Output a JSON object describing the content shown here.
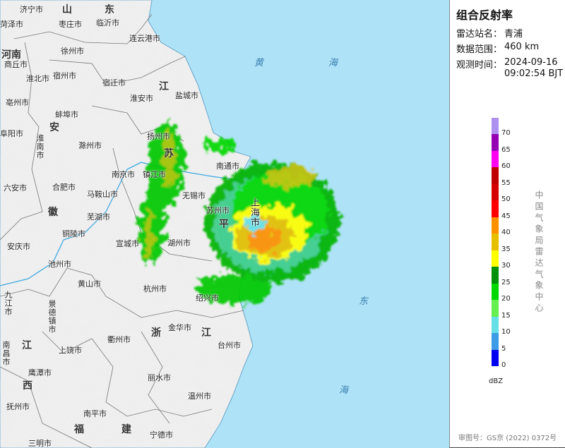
{
  "panel": {
    "title": "组合反射率",
    "station_label": "雷达站名：",
    "station_value": "青浦",
    "range_label": "数据范围：",
    "range_value": "460 km",
    "time_label": "观测时间：",
    "time_date": "2024-09-16",
    "time_clock": "09:02:54 BJT",
    "credit": "中国气象局雷达气象中心",
    "footer": "审图号：GS京 (2022) 0372号"
  },
  "legend": {
    "unit": "dBZ",
    "ticks": [
      "70",
      "65",
      "60",
      "55",
      "50",
      "45",
      "40",
      "35",
      "30",
      "25",
      "20",
      "15",
      "10",
      "5",
      "0"
    ],
    "colors_top_to_bottom": [
      "#ad90f0",
      "#9600b4",
      "#ff00f0",
      "#c00000",
      "#d60000",
      "#ff0000",
      "#ff9000",
      "#e6c000",
      "#ffff00",
      "#00900a",
      "#00d800",
      "#66f050",
      "#66e0e6",
      "#3c9ce6",
      "#0000f0"
    ]
  },
  "map": {
    "colors": {
      "sea": "#aee2f6",
      "land": "#efefef",
      "border": "#777777",
      "river": "#3fa9e0"
    },
    "provinces": [
      "山",
      "东",
      "河南",
      "江",
      "安",
      "苏",
      "徽",
      "浙",
      "江",
      "江",
      "西",
      "福",
      "建",
      "平"
    ],
    "cities": [
      "济宁市",
      "菏泽市",
      "枣庄市",
      "临沂市",
      "连云港市",
      "徐州市",
      "商丘市",
      "宿州市",
      "淮北市",
      "宿迁市",
      "盐城市",
      "淮安市",
      "亳州市",
      "蚌埠市",
      "阜阳市",
      "淮南市",
      "扬州市",
      "滁州市",
      "南京市",
      "镇江市",
      "南通市",
      "六安市",
      "合肥市",
      "马鞍山市",
      "无锡市",
      "苏州市",
      "上海市",
      "芜湖市",
      "铜陵市",
      "安庆市",
      "宣城市",
      "湖州市",
      "池州市",
      "黄山市",
      "杭州市",
      "绍兴市",
      "九江市",
      "景德镇市",
      "金华市",
      "台州市",
      "南昌市",
      "衢州市",
      "上饶市",
      "鹰潭市",
      "丽水市",
      "温州市",
      "抚州市",
      "南平市",
      "宁德市",
      "三明市"
    ],
    "seas": [
      "黄",
      "海",
      "东",
      "海"
    ]
  }
}
